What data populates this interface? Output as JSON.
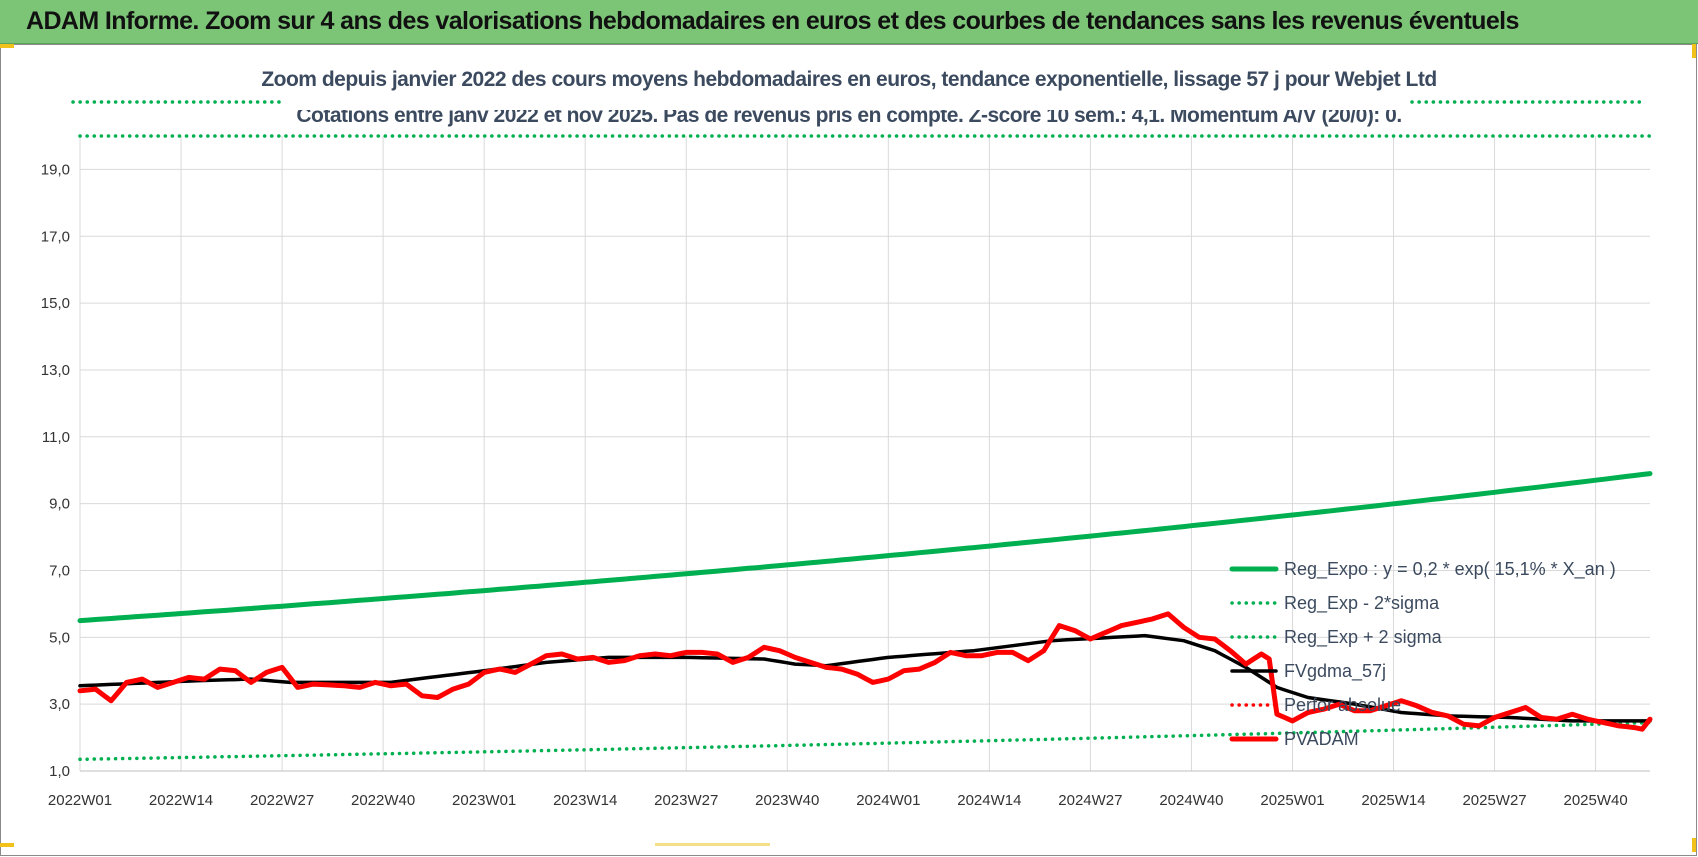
{
  "banner": {
    "title": "ADAM Informe. Zoom sur 4 ans des valorisations hebdomadaires en euros et des courbes de tendances sans les revenus éventuels"
  },
  "colors": {
    "banner": "#7cc576",
    "reg_expo": "#00b050",
    "fvgdma": "#000000",
    "pvadam": "#ff0000",
    "subtitle_text": "#3b4a5e"
  },
  "chart_data": {
    "type": "line",
    "title": "Zoom depuis janvier 2022 des cours moyens hebdomadaires en euros, tendance exponentielle, lissage 57 j pour Webjet Ltd",
    "subtitle": "Cotations entre janv 2022 et nov 2025. Pas de revenus pris en compte. Z-score 10 sem.: 4,1. Momentum A/V (20/0): 0.",
    "xlabel": "",
    "ylabel": "",
    "ylim": [
      1.0,
      20.0
    ],
    "grid": true,
    "legend_position": "right",
    "y_ticks": [
      "1,0",
      "3,0",
      "5,0",
      "7,0",
      "9,0",
      "11,0",
      "13,0",
      "15,0",
      "17,0",
      "19,0"
    ],
    "y_tick_values": [
      1,
      3,
      5,
      7,
      9,
      11,
      13,
      15,
      17,
      19
    ],
    "x_ticks": [
      "2022W01",
      "2022W14",
      "2022W27",
      "2022W40",
      "2023W01",
      "2023W14",
      "2023W27",
      "2023W40",
      "2024W01",
      "2024W14",
      "2024W27",
      "2024W40",
      "2025W01",
      "2025W14",
      "2025W27",
      "2025W40"
    ],
    "n_weeks": 203,
    "series": [
      {
        "name": "Reg_Expo : y = 0,2 * exp( 15,1% *  X_an )",
        "style": "solid-thick",
        "color": "#00b050",
        "points": [
          [
            0,
            5.5
          ],
          [
            202,
            9.9
          ]
        ]
      },
      {
        "name": "Reg_Exp - 2*sigma",
        "style": "dotted",
        "color": "#00b050",
        "points": [
          [
            0,
            1.35
          ],
          [
            202,
            2.45
          ]
        ]
      },
      {
        "name": "Reg_Exp + 2 sigma",
        "style": "dotted",
        "color": "#00b050",
        "points": [
          [
            0,
            20.0
          ],
          [
            202,
            20.0
          ]
        ]
      },
      {
        "name": "FVgdma_57j",
        "style": "solid",
        "color": "#000000",
        "points": [
          [
            0,
            3.55
          ],
          [
            15,
            3.7
          ],
          [
            22,
            3.75
          ],
          [
            27,
            3.65
          ],
          [
            40,
            3.65
          ],
          [
            45,
            3.8
          ],
          [
            52,
            4.0
          ],
          [
            60,
            4.25
          ],
          [
            68,
            4.4
          ],
          [
            78,
            4.4
          ],
          [
            88,
            4.35
          ],
          [
            92,
            4.2
          ],
          [
            96,
            4.15
          ],
          [
            104,
            4.4
          ],
          [
            115,
            4.6
          ],
          [
            125,
            4.9
          ],
          [
            133,
            5.0
          ],
          [
            137,
            5.05
          ],
          [
            142,
            4.9
          ],
          [
            146,
            4.6
          ],
          [
            150,
            4.1
          ],
          [
            154,
            3.5
          ],
          [
            158,
            3.2
          ],
          [
            164,
            3.0
          ],
          [
            170,
            2.75
          ],
          [
            176,
            2.65
          ],
          [
            184,
            2.6
          ],
          [
            192,
            2.5
          ],
          [
            202,
            2.5
          ]
        ]
      },
      {
        "name": "Perfor absolue",
        "style": "dotted",
        "color": "#ff0000",
        "points": []
      },
      {
        "name": "PVADAM",
        "style": "solid-thick",
        "color": "#ff0000",
        "points": [
          [
            0,
            3.4
          ],
          [
            2,
            3.45
          ],
          [
            4,
            3.1
          ],
          [
            6,
            3.65
          ],
          [
            8,
            3.75
          ],
          [
            10,
            3.5
          ],
          [
            12,
            3.65
          ],
          [
            14,
            3.8
          ],
          [
            16,
            3.75
          ],
          [
            18,
            4.05
          ],
          [
            20,
            4.0
          ],
          [
            22,
            3.65
          ],
          [
            24,
            3.95
          ],
          [
            26,
            4.1
          ],
          [
            28,
            3.5
          ],
          [
            30,
            3.6
          ],
          [
            34,
            3.55
          ],
          [
            36,
            3.5
          ],
          [
            38,
            3.65
          ],
          [
            40,
            3.55
          ],
          [
            42,
            3.6
          ],
          [
            44,
            3.25
          ],
          [
            46,
            3.2
          ],
          [
            48,
            3.45
          ],
          [
            50,
            3.6
          ],
          [
            52,
            3.95
          ],
          [
            54,
            4.05
          ],
          [
            56,
            3.95
          ],
          [
            58,
            4.2
          ],
          [
            60,
            4.45
          ],
          [
            62,
            4.5
          ],
          [
            64,
            4.35
          ],
          [
            66,
            4.4
          ],
          [
            68,
            4.25
          ],
          [
            70,
            4.3
          ],
          [
            72,
            4.45
          ],
          [
            74,
            4.5
          ],
          [
            76,
            4.45
          ],
          [
            78,
            4.55
          ],
          [
            80,
            4.55
          ],
          [
            82,
            4.5
          ],
          [
            84,
            4.25
          ],
          [
            86,
            4.4
          ],
          [
            88,
            4.7
          ],
          [
            90,
            4.6
          ],
          [
            92,
            4.4
          ],
          [
            94,
            4.25
          ],
          [
            96,
            4.1
          ],
          [
            98,
            4.05
          ],
          [
            100,
            3.9
          ],
          [
            102,
            3.65
          ],
          [
            104,
            3.75
          ],
          [
            106,
            4.0
          ],
          [
            108,
            4.05
          ],
          [
            110,
            4.25
          ],
          [
            112,
            4.55
          ],
          [
            114,
            4.45
          ],
          [
            116,
            4.45
          ],
          [
            118,
            4.55
          ],
          [
            120,
            4.55
          ],
          [
            122,
            4.3
          ],
          [
            124,
            4.6
          ],
          [
            126,
            5.35
          ],
          [
            128,
            5.2
          ],
          [
            130,
            4.95
          ],
          [
            132,
            5.15
          ],
          [
            134,
            5.35
          ],
          [
            136,
            5.45
          ],
          [
            138,
            5.55
          ],
          [
            140,
            5.7
          ],
          [
            142,
            5.3
          ],
          [
            144,
            5.0
          ],
          [
            146,
            4.95
          ],
          [
            148,
            4.6
          ],
          [
            150,
            4.2
          ],
          [
            152,
            4.5
          ],
          [
            153,
            4.35
          ],
          [
            154,
            2.7
          ],
          [
            156,
            2.5
          ],
          [
            158,
            2.75
          ],
          [
            160,
            2.85
          ],
          [
            162,
            3.0
          ],
          [
            164,
            2.8
          ],
          [
            166,
            2.8
          ],
          [
            168,
            2.95
          ],
          [
            170,
            3.1
          ],
          [
            172,
            2.95
          ],
          [
            174,
            2.75
          ],
          [
            176,
            2.65
          ],
          [
            178,
            2.4
          ],
          [
            180,
            2.35
          ],
          [
            182,
            2.6
          ],
          [
            184,
            2.75
          ],
          [
            186,
            2.9
          ],
          [
            188,
            2.6
          ],
          [
            190,
            2.55
          ],
          [
            192,
            2.7
          ],
          [
            194,
            2.55
          ],
          [
            196,
            2.45
          ],
          [
            198,
            2.35
          ],
          [
            200,
            2.3
          ],
          [
            201,
            2.25
          ],
          [
            202,
            2.55
          ]
        ]
      }
    ]
  }
}
